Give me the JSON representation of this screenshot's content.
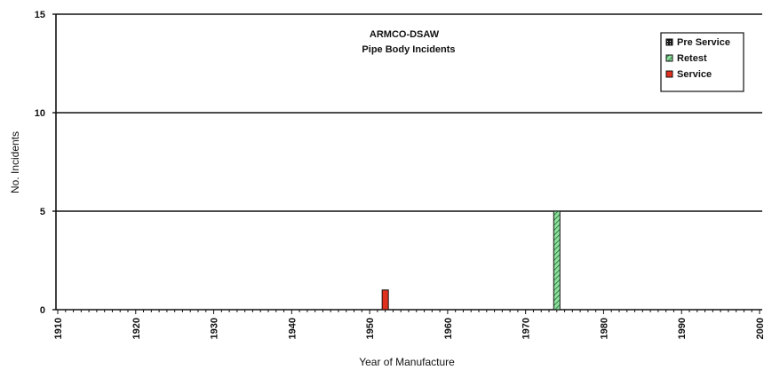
{
  "chart_data": {
    "type": "bar",
    "title": "ARMCO-DSAW",
    "subtitle": "Pipe Body Incidents",
    "xlabel": "Year of Manufacture",
    "ylabel": "No. Incidents",
    "xlim": [
      1910,
      2000
    ],
    "ylim": [
      0,
      15
    ],
    "x_ticks": [
      "1910",
      "1920",
      "1930",
      "1940",
      "1950",
      "1960",
      "1970",
      "1980",
      "1990",
      "2000"
    ],
    "y_ticks": [
      "0",
      "5",
      "10",
      "15"
    ],
    "grid": "horizontal",
    "legend_position": "top-right",
    "series": [
      {
        "name": "Pre Service",
        "color": "#1a1a1a",
        "pattern": "dotted-square",
        "points": []
      },
      {
        "name": "Retest",
        "color": "#8fe0a0",
        "pattern": "diagonal-hatch",
        "points": [
          {
            "x": 1974,
            "y": 5
          }
        ]
      },
      {
        "name": "Service",
        "color": "#e0301e",
        "pattern": "solid",
        "points": [
          {
            "x": 1952,
            "y": 1
          }
        ]
      }
    ]
  }
}
